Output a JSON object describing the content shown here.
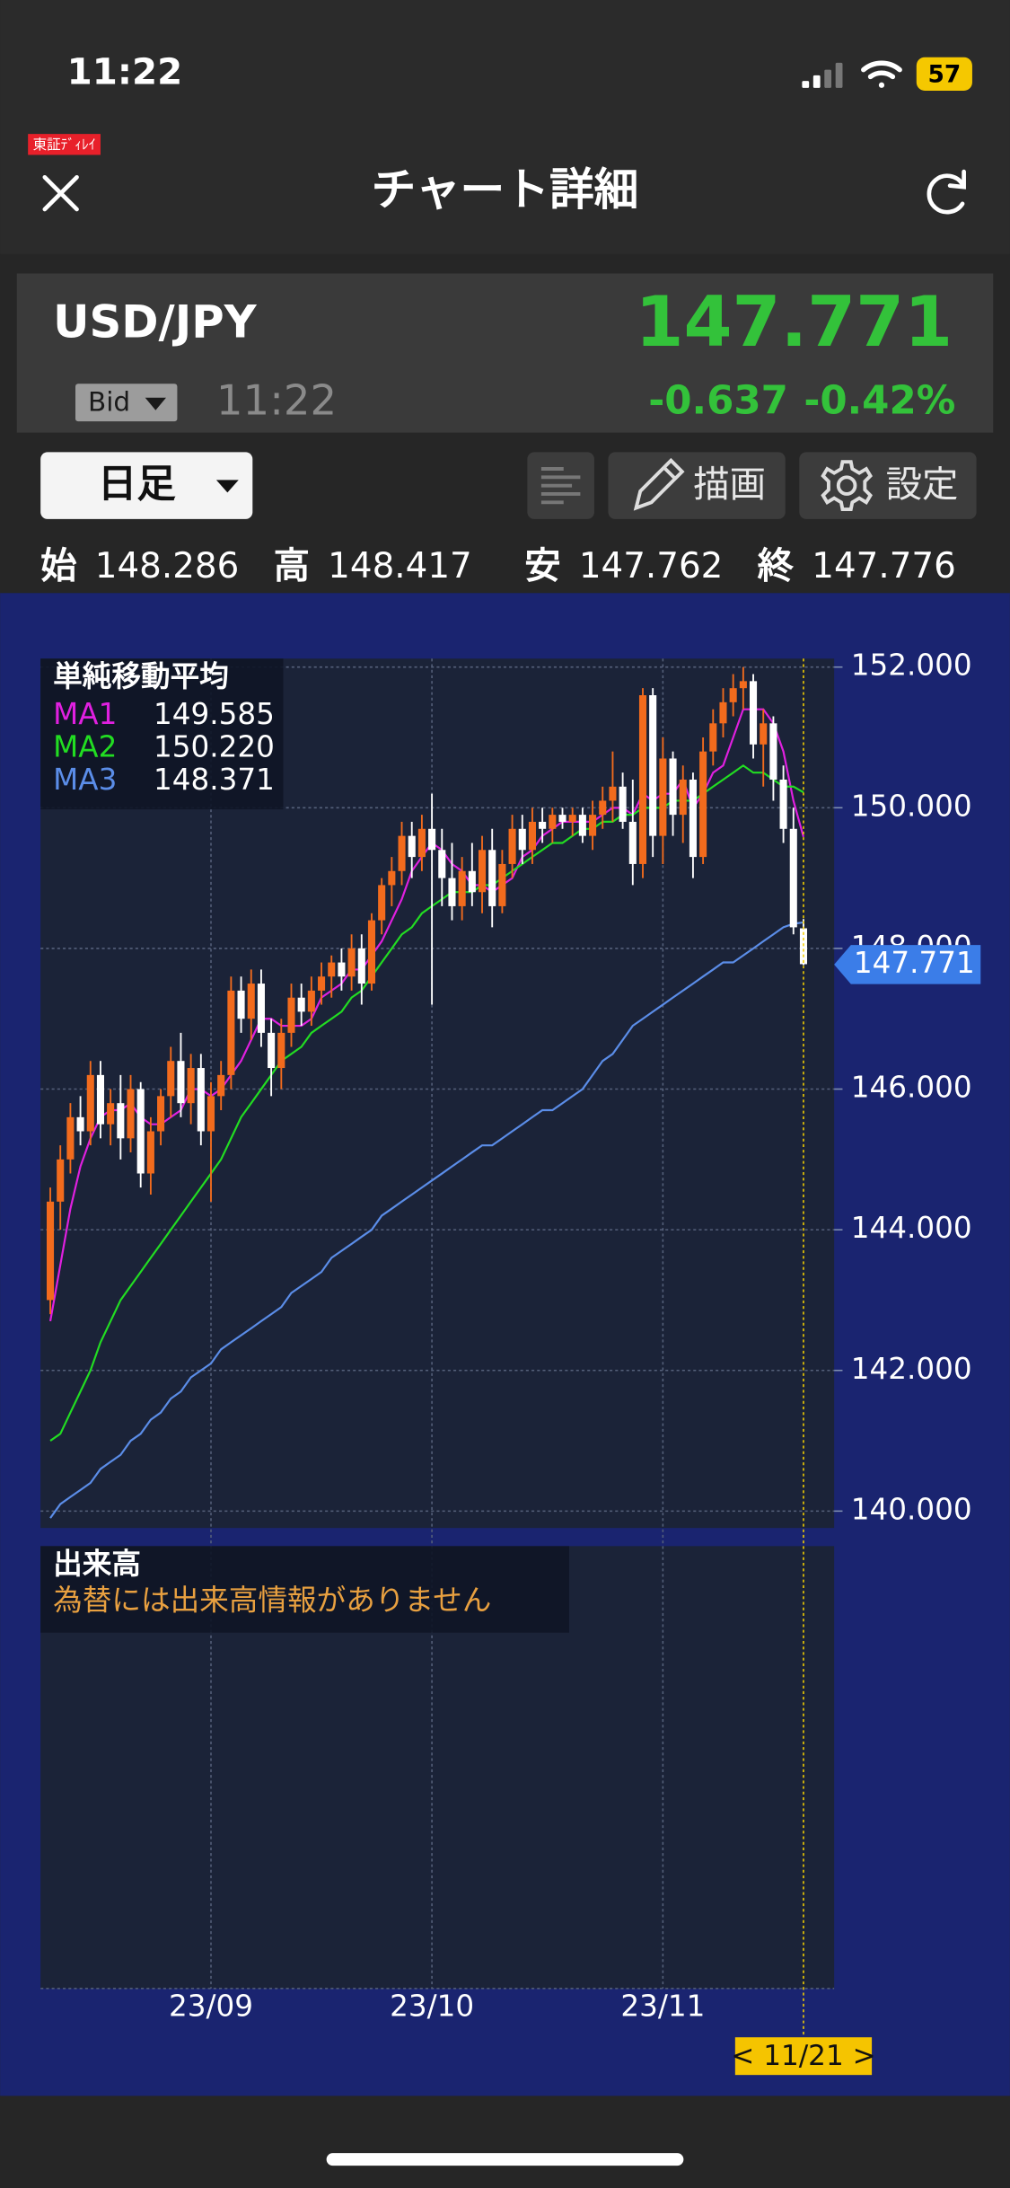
{
  "status_bar": {
    "time": "11:22",
    "battery": "57"
  },
  "header": {
    "badge": "東証ﾃﾞｨﾚｲ",
    "title": "チャート詳細"
  },
  "quote": {
    "symbol": "USD/JPY",
    "price": "147.771",
    "side": "Bid",
    "time": "11:22",
    "change": "-0.637",
    "change_pct": "-0.42%"
  },
  "toolbar": {
    "period": "日足",
    "draw": "描画",
    "settings": "設定"
  },
  "ohlc": [
    {
      "label": "始",
      "value": "148.286"
    },
    {
      "label": "高",
      "value": "148.417"
    },
    {
      "label": "安",
      "value": "147.762"
    },
    {
      "label": "終",
      "value": "147.776"
    }
  ],
  "chart_data": {
    "type": "candlestick",
    "legend_title": "単純移動平均",
    "categories": [
      null,
      null,
      null,
      null,
      null,
      null,
      null,
      null,
      null,
      null,
      null,
      null,
      null,
      null,
      null,
      null,
      "23/09",
      null,
      null,
      null,
      null,
      null,
      null,
      null,
      null,
      null,
      null,
      null,
      null,
      null,
      null,
      null,
      null,
      null,
      null,
      null,
      null,
      null,
      "23/10",
      null,
      null,
      null,
      null,
      null,
      null,
      null,
      null,
      null,
      null,
      null,
      null,
      null,
      null,
      null,
      null,
      null,
      null,
      null,
      null,
      null,
      null,
      "23/11",
      null,
      null,
      null,
      null,
      null,
      null,
      null,
      null,
      null,
      null,
      null,
      null,
      null,
      null
    ],
    "candles": {
      "up_color": "#f26b1d",
      "down_color": "#ffffff",
      "open": [
        143.0,
        144.4,
        145.0,
        145.6,
        145.4,
        146.2,
        145.5,
        145.8,
        145.3,
        146.0,
        144.8,
        145.4,
        145.9,
        146.4,
        145.8,
        146.3,
        145.4,
        145.9,
        146.2,
        147.4,
        147.0,
        147.5,
        146.8,
        146.3,
        146.8,
        147.3,
        147.1,
        147.4,
        147.6,
        147.8,
        147.6,
        148.0,
        147.5,
        148.4,
        148.9,
        149.1,
        149.6,
        149.3,
        149.7,
        149.4,
        149.0,
        148.6,
        149.1,
        148.8,
        149.4,
        148.6,
        149.2,
        149.7,
        149.4,
        149.8,
        149.7,
        149.9,
        149.8,
        149.9,
        149.6,
        149.9,
        150.1,
        150.3,
        149.8,
        149.2,
        151.6,
        149.6,
        150.7,
        149.9,
        150.4,
        149.3,
        150.8,
        151.2,
        151.5,
        151.7,
        151.8,
        150.9,
        151.2,
        150.4,
        149.7,
        148.286
      ],
      "high": [
        144.6,
        145.2,
        145.8,
        145.9,
        146.4,
        146.4,
        146.0,
        146.2,
        146.2,
        146.1,
        145.6,
        146.0,
        146.6,
        146.8,
        146.5,
        146.5,
        146.1,
        146.4,
        147.6,
        147.6,
        147.7,
        147.7,
        147.0,
        147.0,
        147.5,
        147.5,
        147.6,
        147.8,
        147.9,
        148.0,
        148.2,
        148.2,
        148.5,
        149.0,
        149.3,
        149.8,
        149.8,
        149.9,
        150.2,
        149.7,
        149.5,
        149.3,
        149.5,
        149.6,
        149.7,
        149.4,
        149.9,
        149.9,
        150.0,
        150.0,
        150.0,
        150.0,
        150.0,
        150.0,
        150.1,
        150.3,
        150.8,
        150.5,
        150.4,
        151.7,
        151.7,
        151.0,
        150.8,
        150.6,
        150.5,
        151.0,
        151.4,
        151.7,
        151.9,
        152.0,
        151.9,
        151.4,
        151.3,
        150.6,
        150.0,
        148.417
      ],
      "low": [
        142.8,
        144.0,
        144.8,
        145.2,
        145.2,
        145.3,
        145.2,
        145.0,
        145.1,
        144.6,
        144.5,
        145.2,
        145.6,
        145.6,
        145.5,
        145.2,
        144.4,
        145.7,
        146.0,
        146.8,
        146.7,
        146.6,
        145.9,
        146.0,
        146.6,
        146.9,
        146.9,
        147.2,
        147.3,
        147.4,
        147.4,
        147.2,
        147.4,
        148.2,
        148.6,
        148.9,
        149.0,
        149.1,
        147.2,
        148.6,
        148.4,
        148.4,
        148.6,
        148.5,
        148.3,
        148.5,
        149.0,
        149.2,
        149.2,
        149.5,
        149.5,
        149.7,
        149.6,
        149.5,
        149.4,
        149.7,
        149.8,
        149.7,
        148.9,
        149.0,
        149.3,
        149.2,
        149.6,
        149.5,
        149.0,
        149.2,
        150.6,
        151.0,
        151.3,
        151.4,
        150.7,
        150.3,
        150.1,
        149.5,
        148.2,
        147.762
      ],
      "close": [
        144.4,
        145.0,
        145.6,
        145.4,
        146.2,
        145.5,
        145.8,
        145.3,
        146.0,
        144.8,
        145.4,
        145.9,
        146.4,
        145.8,
        146.3,
        145.4,
        145.9,
        146.2,
        147.4,
        147.0,
        147.5,
        146.8,
        146.3,
        146.8,
        147.3,
        147.1,
        147.4,
        147.6,
        147.8,
        147.6,
        148.0,
        147.5,
        148.4,
        148.9,
        149.1,
        149.6,
        149.3,
        149.7,
        149.4,
        149.0,
        148.6,
        149.1,
        148.8,
        149.4,
        148.6,
        149.2,
        149.7,
        149.4,
        149.8,
        149.7,
        149.9,
        149.8,
        149.9,
        149.6,
        149.9,
        150.1,
        150.3,
        149.8,
        149.2,
        151.6,
        149.6,
        150.7,
        149.9,
        150.4,
        149.3,
        150.8,
        151.2,
        151.5,
        151.7,
        151.8,
        150.9,
        151.2,
        150.4,
        149.7,
        148.3,
        147.776
      ]
    },
    "series": [
      {
        "name": "MA1",
        "color": "#e020e0",
        "latest": {
          "value": 149.585,
          "label": "149.585"
        },
        "values": [
          142.7,
          143.5,
          144.3,
          144.9,
          145.3,
          145.6,
          145.7,
          145.7,
          145.8,
          145.6,
          145.5,
          145.5,
          145.6,
          145.7,
          146.0,
          146.0,
          145.9,
          146.0,
          146.2,
          146.4,
          146.7,
          147.0,
          147.0,
          146.9,
          146.9,
          146.9,
          147.0,
          147.3,
          147.4,
          147.5,
          147.7,
          147.7,
          147.9,
          148.1,
          148.4,
          148.7,
          149.1,
          149.3,
          149.5,
          149.4,
          149.2,
          149.1,
          148.9,
          148.9,
          148.8,
          148.9,
          149.0,
          149.3,
          149.4,
          149.6,
          149.7,
          149.8,
          149.8,
          149.8,
          149.8,
          149.9,
          150.0,
          150.0,
          149.9,
          150.2,
          150.1,
          150.2,
          150.2,
          150.4,
          150.0,
          150.2,
          150.5,
          150.6,
          151.0,
          151.4,
          151.4,
          151.4,
          151.2,
          150.8,
          150.1,
          149.585
        ]
      },
      {
        "name": "MA2",
        "color": "#22dd22",
        "latest": {
          "value": 150.22,
          "label": "150.220"
        },
        "values": [
          141.0,
          141.1,
          141.4,
          141.7,
          142.0,
          142.4,
          142.7,
          143.0,
          143.2,
          143.4,
          143.6,
          143.8,
          144.0,
          144.2,
          144.4,
          144.6,
          144.8,
          145.0,
          145.3,
          145.6,
          145.8,
          146.0,
          146.2,
          146.4,
          146.5,
          146.6,
          146.8,
          146.9,
          147.0,
          147.1,
          147.3,
          147.4,
          147.6,
          147.8,
          148.0,
          148.2,
          148.3,
          148.5,
          148.6,
          148.7,
          148.8,
          148.8,
          148.8,
          148.9,
          148.9,
          149.0,
          149.1,
          149.2,
          149.3,
          149.4,
          149.5,
          149.5,
          149.6,
          149.7,
          149.7,
          149.8,
          149.8,
          149.9,
          149.9,
          150.0,
          150.0,
          150.0,
          150.1,
          150.1,
          150.1,
          150.2,
          150.3,
          150.4,
          150.5,
          150.6,
          150.5,
          150.5,
          150.4,
          150.3,
          150.3,
          150.22
        ]
      },
      {
        "name": "MA3",
        "color": "#5b8de8",
        "latest": {
          "value": 148.371,
          "label": "148.371"
        },
        "values": [
          139.9,
          140.1,
          140.2,
          140.3,
          140.4,
          140.6,
          140.7,
          140.8,
          141.0,
          141.1,
          141.3,
          141.4,
          141.6,
          141.7,
          141.9,
          142.0,
          142.1,
          142.3,
          142.4,
          142.5,
          142.6,
          142.7,
          142.8,
          142.9,
          143.1,
          143.2,
          143.3,
          143.4,
          143.6,
          143.7,
          143.8,
          143.9,
          144.0,
          144.2,
          144.3,
          144.4,
          144.5,
          144.6,
          144.7,
          144.8,
          144.9,
          145.0,
          145.1,
          145.2,
          145.2,
          145.3,
          145.4,
          145.5,
          145.6,
          145.7,
          145.7,
          145.8,
          145.9,
          146.0,
          146.2,
          146.4,
          146.5,
          146.7,
          146.9,
          147.0,
          147.1,
          147.2,
          147.3,
          147.4,
          147.5,
          147.6,
          147.7,
          147.8,
          147.8,
          147.9,
          148.0,
          148.1,
          148.2,
          148.3,
          148.35,
          148.371
        ]
      }
    ],
    "ylim": [
      139.76,
      152.12
    ],
    "yticks": [
      {
        "value": 140,
        "label": "140.000"
      },
      {
        "value": 142,
        "label": "142.000"
      },
      {
        "value": 144,
        "label": "144.000"
      },
      {
        "value": 146,
        "label": "146.000"
      },
      {
        "value": 148,
        "label": "148.000"
      },
      {
        "value": 150,
        "label": "150.000"
      },
      {
        "value": 152,
        "label": "152.000"
      }
    ],
    "grid": true,
    "current_price": {
      "value": 147.771,
      "label": "147.771"
    },
    "cursor_label": "< 11/21 >",
    "volume_title": "出来高",
    "volume_note": "為替には出来高情報がありません"
  }
}
